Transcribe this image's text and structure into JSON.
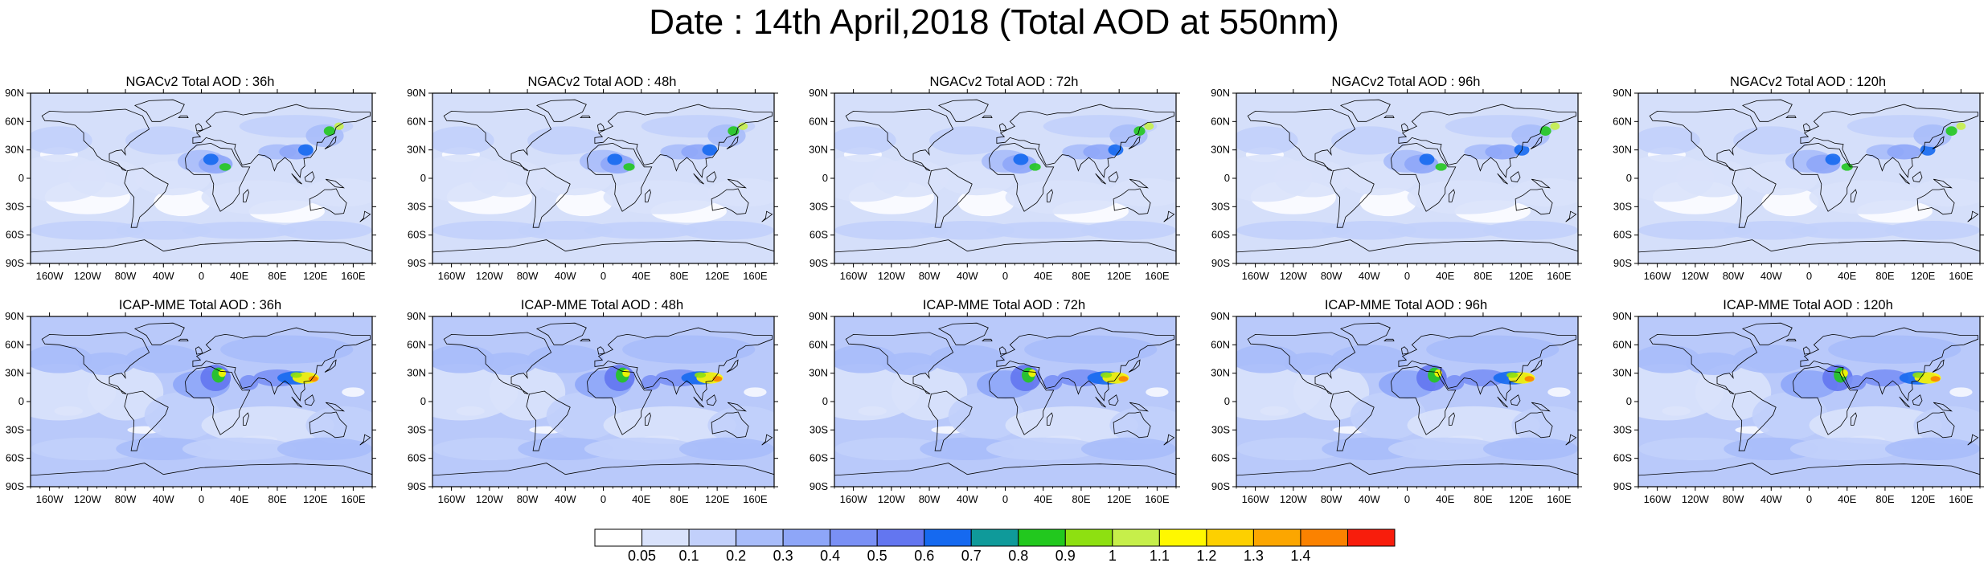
{
  "title": "Date : 14th April,2018 (Total AOD at 550nm)",
  "lat_ticks": [
    "90N",
    "60N",
    "30N",
    "0",
    "30S",
    "60S",
    "90S"
  ],
  "lon_ticks": [
    "160W",
    "120W",
    "80W",
    "40W",
    "0",
    "40E",
    "80E",
    "120E",
    "160E"
  ],
  "lon_tick_values": [
    -160,
    -120,
    -80,
    -40,
    0,
    40,
    80,
    120,
    160
  ],
  "lat_tick_values": [
    90,
    60,
    30,
    0,
    -30,
    -60,
    -90
  ],
  "panels": [
    {
      "title": "NGACv2 Total AOD : 36h",
      "model": "NGACv2",
      "hour": 36
    },
    {
      "title": "NGACv2 Total AOD : 48h",
      "model": "NGACv2",
      "hour": 48
    },
    {
      "title": "NGACv2 Total AOD : 72h",
      "model": "NGACv2",
      "hour": 72
    },
    {
      "title": "NGACv2 Total AOD : 96h",
      "model": "NGACv2",
      "hour": 96
    },
    {
      "title": "NGACv2 Total AOD : 120h",
      "model": "NGACv2",
      "hour": 120
    },
    {
      "title": "ICAP-MME Total AOD : 36h",
      "model": "ICAP-MME",
      "hour": 36
    },
    {
      "title": "ICAP-MME Total AOD : 48h",
      "model": "ICAP-MME",
      "hour": 48
    },
    {
      "title": "ICAP-MME Total AOD : 72h",
      "model": "ICAP-MME",
      "hour": 72
    },
    {
      "title": "ICAP-MME Total AOD : 96h",
      "model": "ICAP-MME",
      "hour": 96
    },
    {
      "title": "ICAP-MME Total AOD : 120h",
      "model": "ICAP-MME",
      "hour": 120
    }
  ],
  "colorbar": {
    "labels": [
      "0.05",
      "0.1",
      "0.2",
      "0.3",
      "0.4",
      "0.5",
      "0.6",
      "0.7",
      "0.8",
      "0.9",
      "1",
      "1.1",
      "1.2",
      "1.3",
      "1.4"
    ],
    "colors": [
      "#ffffff",
      "#d9e2fb",
      "#c2d0fb",
      "#a9bdfa",
      "#8ea6f8",
      "#7a90f5",
      "#6376f0",
      "#1569f0",
      "#0f9a9a",
      "#22c81e",
      "#8ee011",
      "#c6ef4a",
      "#fff800",
      "#fdd000",
      "#fca600",
      "#fb8200",
      "#f81d0c"
    ]
  },
  "map_colors": {
    "ocean_light": "#d5dffa",
    "ocean_mid": "#b9c9fa",
    "land_low": "#a7b9f7",
    "aerosol_high": "#6f86f2",
    "coastline": "#000000"
  }
}
